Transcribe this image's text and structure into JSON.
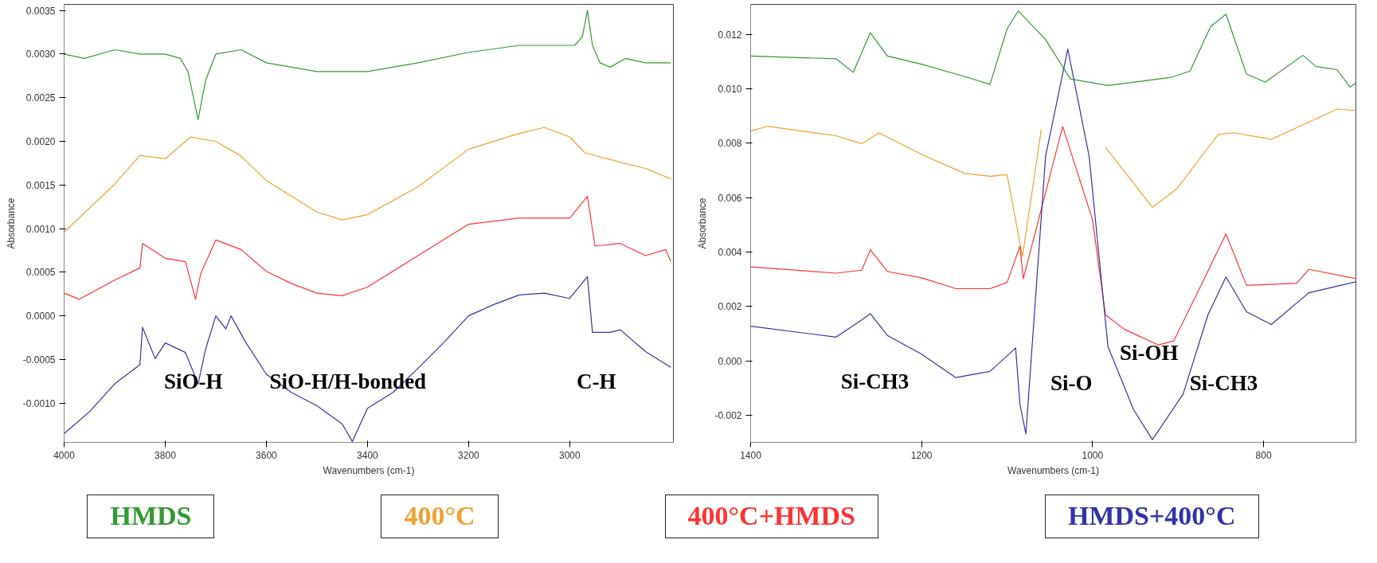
{
  "chart_data": [
    {
      "type": "line",
      "xlabel": "Wavenumbers (cm-1)",
      "ylabel": "Absorbance",
      "grid": false,
      "legend": "bottom",
      "marker": "none",
      "line_style": "solid",
      "xlim": [
        4000,
        2795
      ],
      "xticks": [
        4000,
        3800,
        3600,
        3400,
        3200,
        3000
      ],
      "ylim": [
        -0.00145,
        0.00357
      ],
      "yticks": [
        {
          "value": -0.001,
          "label": "-0.0010"
        },
        {
          "value": -0.0005,
          "label": "-0.0005"
        },
        {
          "value": 0,
          "label": "0.0000"
        },
        {
          "value": 0.0005,
          "label": "0.0005"
        },
        {
          "value": 0.001,
          "label": "0.0010"
        },
        {
          "value": 0.0015,
          "label": "0.0015"
        },
        {
          "value": 0.002,
          "label": "0.0020"
        },
        {
          "value": 0.0025,
          "label": "0.0025"
        },
        {
          "value": 0.003,
          "label": "0.0030"
        },
        {
          "value": 0.0035,
          "label": "0.0035"
        }
      ],
      "annotations": [
        "SiO-H",
        "SiO-H/H-bonded",
        "C-H"
      ],
      "series": [
        {
          "name": "HMDS",
          "color": "#339933",
          "x": [
            4000,
            3960,
            3900,
            3850,
            3800,
            3770,
            3755,
            3735,
            3720,
            3700,
            3650,
            3600,
            3550,
            3500,
            3450,
            3400,
            3300,
            3200,
            3100,
            3050,
            2990,
            2975,
            2965,
            2955,
            2940,
            2920,
            2890,
            2850,
            2800
          ],
          "values": [
            0.003,
            0.00295,
            0.00305,
            0.003,
            0.003,
            0.00295,
            0.0028,
            0.00225,
            0.0027,
            0.003,
            0.00305,
            0.0029,
            0.00285,
            0.0028,
            0.0028,
            0.0028,
            0.0029,
            0.00302,
            0.0031,
            0.0031,
            0.0031,
            0.0032,
            0.0035,
            0.0031,
            0.0029,
            0.00285,
            0.00295,
            0.0029,
            0.0029
          ]
        },
        {
          "name": "400°C",
          "color": "#f0a030",
          "x": [
            4000,
            3900,
            3850,
            3800,
            3750,
            3700,
            3650,
            3600,
            3550,
            3500,
            3450,
            3400,
            3300,
            3200,
            3100,
            3050,
            3000,
            2970,
            2900,
            2850,
            2800
          ],
          "values": [
            0.00096,
            0.00151,
            0.00184,
            0.0018,
            0.00205,
            0.002,
            0.00183,
            0.00155,
            0.00137,
            0.00119,
            0.0011,
            0.00116,
            0.00148,
            0.00191,
            0.00209,
            0.00216,
            0.00205,
            0.00187,
            0.00176,
            0.00169,
            0.00157
          ]
        },
        {
          "name": "400°C+HMDS",
          "color": "#ff3333",
          "x": [
            4000,
            3970,
            3900,
            3850,
            3845,
            3800,
            3760,
            3740,
            3730,
            3700,
            3650,
            3600,
            3550,
            3500,
            3450,
            3400,
            3300,
            3200,
            3100,
            3000,
            2965,
            2950,
            2900,
            2850,
            2810,
            2800
          ],
          "values": [
            0.00026,
            0.00019,
            0.00041,
            0.00055,
            0.00083,
            0.00066,
            0.00062,
            0.00019,
            0.00048,
            0.00087,
            0.00076,
            0.00051,
            0.00037,
            0.00026,
            0.00023,
            0.00033,
            0.00069,
            0.00105,
            0.00112,
            0.00112,
            0.00137,
            0.0008,
            0.00083,
            0.00069,
            0.00076,
            0.00062
          ]
        },
        {
          "name": "HMDS+400°C",
          "color": "#3333aa",
          "x": [
            4000,
            3950,
            3900,
            3850,
            3845,
            3820,
            3800,
            3760,
            3735,
            3720,
            3700,
            3680,
            3670,
            3640,
            3600,
            3550,
            3500,
            3450,
            3430,
            3400,
            3350,
            3300,
            3250,
            3200,
            3150,
            3100,
            3050,
            3000,
            2965,
            2955,
            2920,
            2900,
            2850,
            2800
          ],
          "values": [
            -0.00135,
            -0.0011,
            -0.00078,
            -0.00056,
            -0.00013,
            -0.00049,
            -0.00031,
            -0.00042,
            -0.00078,
            -0.00038,
            0.0,
            -0.00015,
            0.0,
            -0.00031,
            -0.00067,
            -0.00088,
            -0.00103,
            -0.00124,
            -0.00144,
            -0.00106,
            -0.00088,
            -0.0006,
            -0.00031,
            0.0,
            0.00013,
            0.00024,
            0.00026,
            0.0002,
            0.00045,
            -0.00019,
            -0.00019,
            -0.00016,
            -0.00041,
            -0.00059
          ]
        }
      ]
    },
    {
      "type": "line",
      "xlabel": "Wavenumbers (cm-1)",
      "ylabel": "Absorbance",
      "grid": false,
      "marker": "none",
      "line_style": "solid",
      "xlim": [
        1400,
        692
      ],
      "xticks": [
        1400,
        1200,
        1000,
        800
      ],
      "ylim": [
        -0.003,
        0.0131
      ],
      "yticks": [
        {
          "value": -0.002,
          "label": "-0.002"
        },
        {
          "value": 0,
          "label": "0.000"
        },
        {
          "value": 0.002,
          "label": "0.002"
        },
        {
          "value": 0.004,
          "label": "0.004"
        },
        {
          "value": 0.006,
          "label": "0.006"
        },
        {
          "value": 0.008,
          "label": "0.008"
        },
        {
          "value": 0.01,
          "label": "0.010"
        },
        {
          "value": 0.012,
          "label": "0.012"
        }
      ],
      "annotations": [
        "Si-CH3",
        "Si-O",
        "Si-OH",
        "Si-CH3"
      ],
      "series": [
        {
          "color": "#339933",
          "x": [
            1400,
            1300,
            1280,
            1260,
            1240,
            1200,
            1150,
            1120,
            1100,
            1087,
            1055,
            1026,
            982,
            908,
            886,
            862,
            844,
            820,
            798,
            754,
            739,
            714,
            699,
            692
          ],
          "values": [
            0.0112,
            0.0111,
            0.0106,
            0.01206,
            0.0112,
            0.0109,
            0.01045,
            0.01016,
            0.0122,
            0.01286,
            0.01181,
            0.01036,
            0.01012,
            0.01042,
            0.01065,
            0.01228,
            0.01274,
            0.01054,
            0.01024,
            0.01123,
            0.01082,
            0.0107,
            0.01006,
            0.0102
          ]
        },
        {
          "color": "#f0a030",
          "x": [
            1400,
            1380,
            1300,
            1270,
            1250,
            1200,
            1150,
            1120,
            1100,
            1082,
            1060,
            1046,
            1030,
            1015,
            985,
            930,
            901,
            853,
            835,
            791,
            714,
            692
          ],
          "values": [
            0.00844,
            0.00862,
            0.00827,
            0.00798,
            0.00838,
            0.00758,
            0.00689,
            0.00678,
            0.00684,
            0.00383,
            0.0085,
            null,
            null,
            null,
            0.00785,
            0.00564,
            0.00634,
            0.00832,
            0.00838,
            0.00814,
            0.00925,
            0.0092
          ]
        },
        {
          "color": "#ff3333",
          "x": [
            1400,
            1300,
            1270,
            1260,
            1240,
            1200,
            1160,
            1120,
            1100,
            1085,
            1081,
            1035,
            1000,
            985,
            963,
            923,
            905,
            872,
            844,
            820,
            761,
            747,
            692
          ],
          "values": [
            0.00345,
            0.00322,
            0.00333,
            0.00408,
            0.00328,
            0.00305,
            0.00265,
            0.00265,
            0.00288,
            0.0042,
            0.00302,
            0.00861,
            0.00518,
            0.00169,
            0.00116,
            0.00058,
            0.00073,
            0.00285,
            0.00466,
            0.00277,
            0.00285,
            0.00336,
            0.00302
          ]
        },
        {
          "color": "#3333aa",
          "x": [
            1400,
            1300,
            1270,
            1260,
            1240,
            1200,
            1160,
            1120,
            1090,
            1085,
            1078,
            1055,
            1029,
            1004,
            982,
            952,
            930,
            894,
            865,
            844,
            820,
            791,
            747,
            692
          ],
          "values": [
            0.00127,
            0.00087,
            0.0015,
            0.00173,
            0.00093,
            0.00024,
            -0.00062,
            -0.00039,
            0.00047,
            -0.0016,
            -0.00269,
            0.00751,
            0.01146,
            0.00751,
            0.00052,
            -0.0018,
            -0.0029,
            -0.00122,
            0.00169,
            0.00308,
            0.0018,
            0.00133,
            0.0025,
            0.0029
          ]
        }
      ]
    }
  ]
}
